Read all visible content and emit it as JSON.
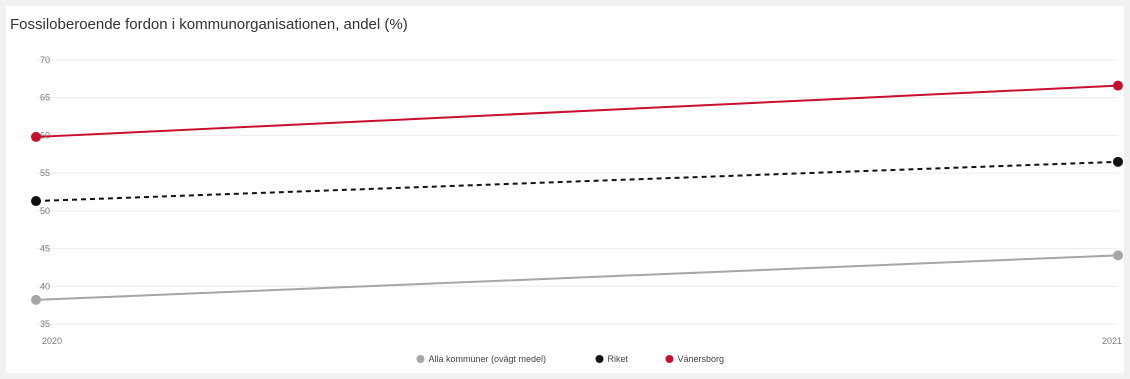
{
  "chart_data": {
    "type": "line",
    "title": "Fossiloberoende fordon i kommunorganisationen, andel (%)",
    "xlabel": "",
    "ylabel": "",
    "x": [
      "2020",
      "2021"
    ],
    "ylim": [
      35,
      70
    ],
    "yticks": [
      35,
      40,
      45,
      50,
      55,
      60,
      65,
      70
    ],
    "grid": true,
    "legend_position": "bottom",
    "series": [
      {
        "name": "Alla kommuner (ovägt medel)",
        "values": [
          38.2,
          44.1
        ],
        "color": "#a6a6a6",
        "dashed": false
      },
      {
        "name": "Riket",
        "values": [
          51.3,
          56.5
        ],
        "color": "#111111",
        "dashed": true
      },
      {
        "name": "Vänersborg",
        "values": [
          59.8,
          66.6
        ],
        "color": "#c8102e",
        "dashed": false
      }
    ]
  }
}
